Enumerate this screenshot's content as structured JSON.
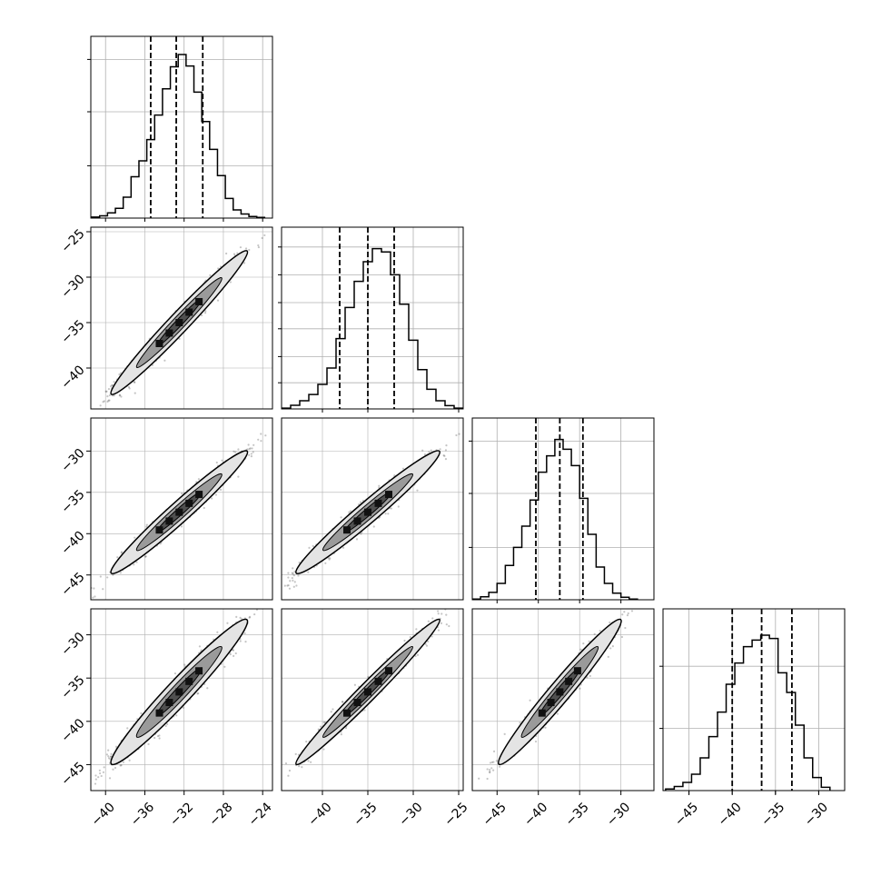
{
  "chart_data": {
    "type": "corner",
    "n_params": 4,
    "grid": true,
    "dims": [
      {
        "range": [
          -41.5,
          -23.0
        ],
        "median": -32.8,
        "quantiles": [
          -35.4,
          -30.1
        ],
        "hist_x": [
          -41.0,
          -40.2,
          -39.4,
          -38.6,
          -37.8,
          -37.0,
          -36.2,
          -35.4,
          -34.6,
          -33.8,
          -33.0,
          -32.2,
          -31.4,
          -30.6,
          -29.8,
          -29.0,
          -28.2,
          -27.4,
          -26.6,
          -25.8,
          -25.0,
          -24.2
        ],
        "hist_y": [
          0.006,
          0.014,
          0.032,
          0.06,
          0.128,
          0.253,
          0.35,
          0.48,
          0.63,
          0.79,
          0.925,
          1.0,
          0.93,
          0.77,
          0.59,
          0.42,
          0.26,
          0.12,
          0.05,
          0.025,
          0.01,
          0.004
        ],
        "ticks": [
          "−40",
          "−36",
          "−32",
          "−28",
          "−24"
        ],
        "tick_values": [
          -40,
          -36,
          -32,
          -28,
          -24
        ]
      },
      {
        "range": [
          -44.5,
          -24.5
        ],
        "median": -35.0,
        "quantiles": [
          -38.1,
          -32.1
        ],
        "hist_x": [
          -44.0,
          -43.0,
          -42.0,
          -41.0,
          -40.0,
          -39.0,
          -38.0,
          -37.0,
          -36.0,
          -35.0,
          -34.0,
          -33.0,
          -32.0,
          -31.0,
          -30.0,
          -29.0,
          -28.0,
          -27.0,
          -26.0,
          -25.0
        ],
        "hist_y": [
          0.005,
          0.022,
          0.05,
          0.088,
          0.15,
          0.25,
          0.43,
          0.62,
          0.78,
          0.9,
          0.98,
          0.96,
          0.82,
          0.64,
          0.42,
          0.24,
          0.12,
          0.05,
          0.02,
          0.005
        ],
        "ticks": [
          "−40",
          "−35",
          "−30",
          "−25"
        ],
        "tick_values": [
          -40,
          -35,
          -30,
          -25
        ]
      },
      {
        "range": [
          -48.0,
          -26.0
        ],
        "median": -37.4,
        "quantiles": [
          -40.3,
          -34.6
        ],
        "hist_x": [
          -47.5,
          -46.5,
          -45.5,
          -44.5,
          -43.5,
          -42.5,
          -41.5,
          -40.5,
          -39.5,
          -38.5,
          -37.5,
          -36.5,
          -35.5,
          -34.5,
          -33.5,
          -32.5,
          -31.5,
          -30.5,
          -29.5,
          -28.5
        ],
        "hist_y": [
          0.004,
          0.018,
          0.045,
          0.1,
          0.21,
          0.32,
          0.45,
          0.61,
          0.78,
          0.88,
          0.98,
          0.92,
          0.82,
          0.62,
          0.4,
          0.2,
          0.1,
          0.04,
          0.015,
          0.004
        ],
        "ticks": [
          "−45",
          "−40",
          "−35",
          "−30"
        ],
        "tick_values": [
          -45,
          -40,
          -35,
          -30
        ]
      },
      {
        "range": [
          -48.0,
          -27.0
        ],
        "median": -36.6,
        "quantiles": [
          -40.0,
          -33.1
        ],
        "hist_x": [
          -47.2,
          -46.2,
          -45.2,
          -44.2,
          -43.2,
          -42.2,
          -41.2,
          -40.2,
          -39.2,
          -38.2,
          -37.2,
          -36.2,
          -35.2,
          -34.2,
          -33.2,
          -32.2,
          -31.2,
          -30.2,
          -29.2
        ],
        "hist_y": [
          0.01,
          0.025,
          0.05,
          0.1,
          0.2,
          0.33,
          0.48,
          0.65,
          0.78,
          0.88,
          0.92,
          0.95,
          0.93,
          0.72,
          0.6,
          0.4,
          0.2,
          0.08,
          0.02
        ],
        "ticks": [
          "−45",
          "−40",
          "−35",
          "−30"
        ],
        "tick_values": [
          -45,
          -40,
          -35,
          -30
        ]
      }
    ],
    "row_ticks": [
      {
        "labels": [
          "−25",
          "−30",
          "−35",
          "−40"
        ],
        "values": [
          -25,
          -30,
          -35,
          -40
        ]
      },
      {
        "labels": [
          "−30",
          "−35",
          "−40",
          "−45"
        ],
        "values": [
          -30,
          -35,
          -40,
          -45
        ]
      },
      {
        "labels": [
          "−30",
          "−35",
          "−40",
          "−45"
        ],
        "values": [
          -30,
          -35,
          -40,
          -45
        ]
      }
    ],
    "hist_grid_levels": [
      [
        0.32,
        0.65,
        0.97
      ],
      [
        0.16,
        0.32,
        0.49,
        0.65,
        0.82,
        0.99
      ],
      [
        0.32,
        0.65,
        0.97
      ],
      [
        0.38,
        0.76
      ]
    ],
    "pairs": [
      {
        "row": 1,
        "col": 0,
        "cx": -32.5,
        "cy": -35.0,
        "sx": 2.9,
        "sy": 3.3,
        "rho": 0.98
      },
      {
        "row": 2,
        "col": 0,
        "cx": -32.5,
        "cy": -37.4,
        "sx": 2.9,
        "sy": 3.1,
        "rho": 0.975
      },
      {
        "row": 2,
        "col": 1,
        "cx": -35.0,
        "cy": -37.4,
        "sx": 3.3,
        "sy": 3.1,
        "rho": 0.975
      },
      {
        "row": 3,
        "col": 0,
        "cx": -32.5,
        "cy": -36.6,
        "sx": 2.9,
        "sy": 3.5,
        "rho": 0.97
      },
      {
        "row": 3,
        "col": 1,
        "cx": -35.0,
        "cy": -36.6,
        "sx": 3.3,
        "sy": 3.5,
        "rho": 0.985
      },
      {
        "row": 3,
        "col": 2,
        "cx": -37.4,
        "cy": -36.6,
        "sx": 3.1,
        "sy": 3.5,
        "rho": 0.975
      }
    ],
    "colors": {
      "line": "#000000",
      "grid": "#b0b0b0",
      "scatter": "#303030"
    }
  }
}
